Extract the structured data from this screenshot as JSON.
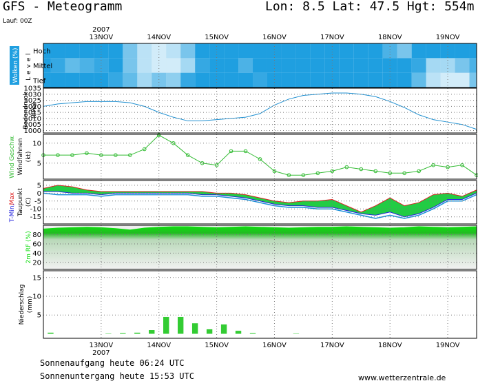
{
  "header": {
    "title": "GFS - Meteogramm",
    "location": "Lon: 8.5 Lat: 47.5 Hgt: 554m",
    "run": "Lauf: 00Z"
  },
  "time_axis": {
    "year": "2007",
    "xlim": [
      0,
      30
    ],
    "xticks": [
      {
        "value": 4,
        "label": "13NOV"
      },
      {
        "value": 8,
        "label": "14NOV"
      },
      {
        "value": 12,
        "label": "15NOV"
      },
      {
        "value": 16,
        "label": "16NOV"
      },
      {
        "value": 20,
        "label": "17NOV"
      },
      {
        "value": 24,
        "label": "18NOV"
      },
      {
        "value": 28,
        "label": "19NOV"
      }
    ]
  },
  "chart_data": [
    {
      "type": "heatmap",
      "ylabel": [
        "Wolken (%)",
        "Level"
      ],
      "color": "#1f9fe0",
      "grid": true,
      "series": [
        {
          "name": "Hoch",
          "values": [
            100,
            100,
            100,
            100,
            100,
            100,
            60,
            30,
            20,
            30,
            60,
            100,
            100,
            100,
            100,
            100,
            100,
            100,
            100,
            100,
            100,
            100,
            100,
            100,
            80,
            60,
            100,
            100,
            100,
            100,
            100
          ]
        },
        {
          "name": "Mittel",
          "values": [
            100,
            90,
            70,
            80,
            90,
            100,
            60,
            30,
            20,
            20,
            40,
            90,
            100,
            100,
            80,
            100,
            100,
            100,
            100,
            100,
            100,
            100,
            100,
            100,
            100,
            100,
            90,
            40,
            40,
            60,
            80
          ]
        },
        {
          "name": "Tief",
          "values": [
            100,
            100,
            100,
            100,
            100,
            90,
            70,
            40,
            60,
            50,
            90,
            100,
            100,
            100,
            100,
            90,
            100,
            100,
            100,
            100,
            100,
            100,
            100,
            100,
            100,
            100,
            70,
            30,
            20,
            20,
            60
          ]
        }
      ]
    },
    {
      "type": "line",
      "ylabel": [
        "Bodendruck",
        "(hPa)"
      ],
      "ylim": [
        998,
        1035
      ],
      "yticks": [
        1000,
        1005,
        1010,
        1015,
        1020,
        1025,
        1030,
        1035
      ],
      "grid": true,
      "series": [
        {
          "name": "Bodendruck",
          "color": "#1f8fd0",
          "values": [
            1020,
            1022,
            1023,
            1024,
            1024,
            1024,
            1023,
            1020,
            1015,
            1011,
            1008,
            1008,
            1009,
            1010,
            1011,
            1014,
            1021,
            1026,
            1029,
            1030,
            1031,
            1031,
            1030,
            1028,
            1024,
            1019,
            1013,
            1009,
            1007,
            1005,
            1001
          ]
        }
      ]
    },
    {
      "type": "line",
      "markers": true,
      "ylabel": [
        "Wind Geschw.",
        "Windfahnen",
        "(kt)"
      ],
      "ylim": [
        1,
        12.2
      ],
      "yticks": [
        5,
        10
      ],
      "grid": true,
      "series": [
        {
          "name": "Wind Geschw.",
          "color": "#33bb33",
          "values": [
            7,
            7,
            7,
            7.5,
            7,
            7,
            7,
            8.5,
            12,
            10,
            7,
            5,
            4.5,
            8,
            8,
            6,
            3,
            2,
            2,
            2.5,
            3,
            4,
            3.5,
            3,
            2.5,
            2.5,
            3,
            4.5,
            4,
            4.5,
            2
          ]
        }
      ]
    },
    {
      "type": "band",
      "ylabel": [
        "T-Min,",
        "Max",
        "Taupunkt",
        "(C)"
      ],
      "ylim": [
        -19.5,
        8
      ],
      "yticks": [
        5,
        0,
        -5,
        -10,
        -15
      ],
      "grid": true,
      "fill": "#22cc44",
      "series": [
        {
          "name": "Max",
          "color": "#dd2222",
          "values": [
            3,
            5,
            4,
            2,
            1,
            1,
            1,
            1,
            1,
            1,
            1,
            1,
            0,
            0,
            -1,
            -3,
            -5,
            -6,
            -5,
            -5,
            -4,
            -8,
            -12,
            -8,
            -3,
            -8,
            -6,
            -1,
            0,
            -2,
            2
          ]
        },
        {
          "name": "T-Min",
          "color": "#2222dd",
          "values": [
            1,
            1,
            0,
            0,
            -1,
            0,
            0,
            0,
            0,
            0,
            0,
            -1,
            -1,
            -2,
            -3,
            -5,
            -7,
            -8,
            -8,
            -9,
            -9,
            -11,
            -13,
            -14,
            -12,
            -15,
            -13,
            -9,
            -4,
            -4,
            0
          ]
        },
        {
          "name": "Taupunkt",
          "color": "#1a8fd8",
          "values": [
            0,
            -1,
            -1,
            -1,
            -2,
            -1,
            -1,
            -1,
            -1,
            -1,
            -1,
            -2,
            -2,
            -3,
            -4,
            -6,
            -8,
            -9,
            -9,
            -10,
            -10,
            -12,
            -14,
            -16,
            -14,
            -16,
            -14,
            -10,
            -5,
            -5,
            -1
          ]
        }
      ]
    },
    {
      "type": "area",
      "ylabel": [
        "2m RF (%)"
      ],
      "ylim": [
        5,
        100
      ],
      "yticks": [
        20,
        40,
        60,
        80
      ],
      "grid": true,
      "series": [
        {
          "name": "2m RF",
          "color": "#11dd11",
          "values": [
            92,
            94,
            95,
            96,
            95,
            93,
            90,
            94,
            96,
            97,
            97,
            96,
            95,
            96,
            97,
            96,
            95,
            94,
            95,
            96,
            96,
            97,
            96,
            95,
            94,
            95,
            97,
            96,
            95,
            96,
            97
          ]
        }
      ]
    },
    {
      "type": "bar",
      "ylabel": [
        "Niederschlag",
        "(mm)"
      ],
      "ylim": [
        -1.2,
        16.8
      ],
      "yticks": [
        5,
        10,
        15
      ],
      "grid": true,
      "series": [
        {
          "name": "Niederschlag",
          "color": "#33cc33",
          "values": [
            0.3,
            0,
            0,
            0,
            0.1,
            0.2,
            0.3,
            1.0,
            4.5,
            4.5,
            2.8,
            1.2,
            2.5,
            0.8,
            0.2,
            0,
            0,
            0.1,
            0,
            0,
            0,
            0,
            0,
            0,
            0,
            0,
            0,
            0,
            0,
            0
          ]
        }
      ]
    }
  ],
  "footer": {
    "sunrise": "Sonnenaufgang heute 06:24 UTC",
    "sunset": "Sonnenuntergang heute 15:53 UTC",
    "source": "www.wetterzentrale.de"
  }
}
